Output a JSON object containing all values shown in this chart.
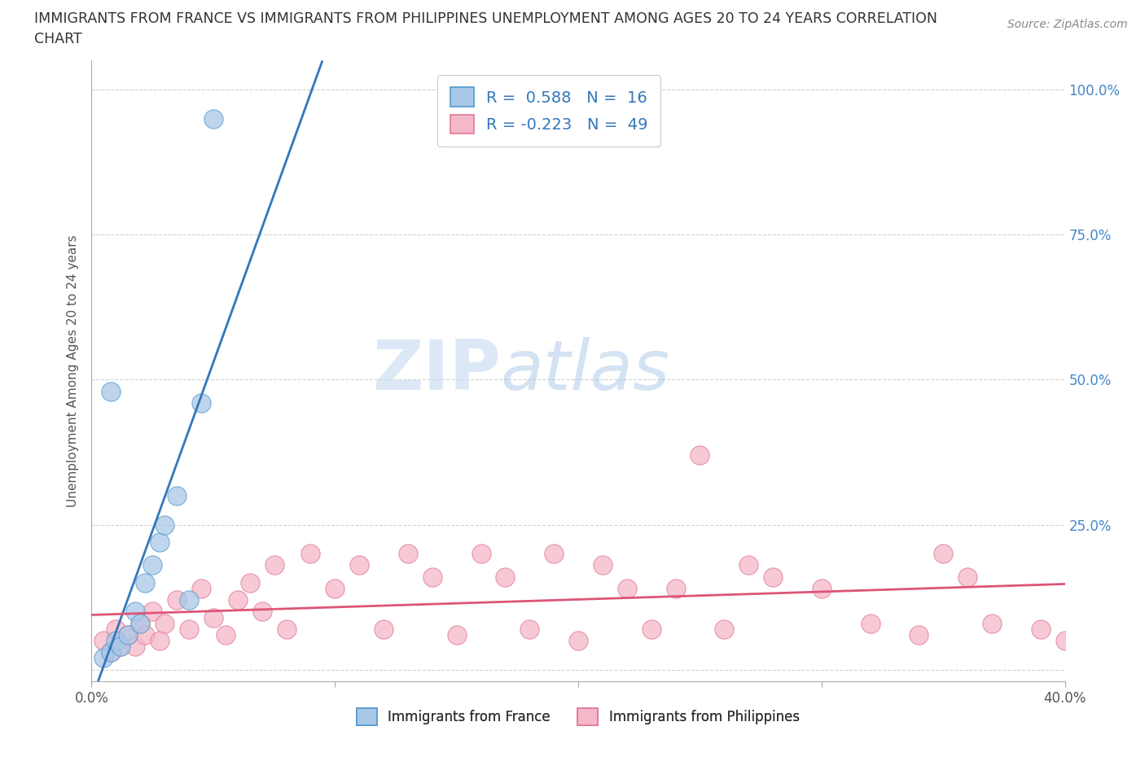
{
  "title_line1": "IMMIGRANTS FROM FRANCE VS IMMIGRANTS FROM PHILIPPINES UNEMPLOYMENT AMONG AGES 20 TO 24 YEARS CORRELATION",
  "title_line2": "CHART",
  "source_text": "Source: ZipAtlas.com",
  "ylabel": "Unemployment Among Ages 20 to 24 years",
  "xlim": [
    0.0,
    0.4
  ],
  "ylim": [
    -0.02,
    1.05
  ],
  "yticks": [
    0.0,
    0.25,
    0.5,
    0.75,
    1.0
  ],
  "xticks": [
    0.0,
    0.1,
    0.2,
    0.3,
    0.4
  ],
  "france_color": "#a8c8e8",
  "france_edge": "#5599cc",
  "philippines_color": "#f5b8c8",
  "philippines_edge": "#e07898",
  "france_r": 0.588,
  "france_n": 16,
  "philippines_r": -0.223,
  "philippines_n": 49,
  "legend_label_france": "Immigrants from France",
  "legend_label_philippines": "Immigrants from Philippines",
  "watermark_zip": "ZIP",
  "watermark_atlas": "atlas",
  "france_scatter_x": [
    0.005,
    0.008,
    0.01,
    0.012,
    0.015,
    0.018,
    0.02,
    0.022,
    0.025,
    0.028,
    0.03,
    0.035,
    0.04,
    0.045,
    0.05,
    0.008
  ],
  "france_scatter_y": [
    0.02,
    0.03,
    0.05,
    0.04,
    0.06,
    0.1,
    0.08,
    0.15,
    0.18,
    0.22,
    0.25,
    0.3,
    0.12,
    0.46,
    0.95,
    0.48
  ],
  "philippines_scatter_x": [
    0.005,
    0.008,
    0.01,
    0.012,
    0.015,
    0.018,
    0.02,
    0.022,
    0.025,
    0.028,
    0.03,
    0.035,
    0.04,
    0.045,
    0.05,
    0.055,
    0.06,
    0.065,
    0.07,
    0.075,
    0.08,
    0.09,
    0.1,
    0.11,
    0.12,
    0.13,
    0.14,
    0.15,
    0.16,
    0.17,
    0.18,
    0.19,
    0.2,
    0.21,
    0.22,
    0.23,
    0.24,
    0.25,
    0.26,
    0.27,
    0.28,
    0.3,
    0.32,
    0.34,
    0.35,
    0.36,
    0.37,
    0.39,
    0.4
  ],
  "philippines_scatter_y": [
    0.05,
    0.03,
    0.07,
    0.04,
    0.06,
    0.04,
    0.08,
    0.06,
    0.1,
    0.05,
    0.08,
    0.12,
    0.07,
    0.14,
    0.09,
    0.06,
    0.12,
    0.15,
    0.1,
    0.18,
    0.07,
    0.2,
    0.14,
    0.18,
    0.07,
    0.2,
    0.16,
    0.06,
    0.2,
    0.16,
    0.07,
    0.2,
    0.05,
    0.18,
    0.14,
    0.07,
    0.14,
    0.37,
    0.07,
    0.18,
    0.16,
    0.14,
    0.08,
    0.06,
    0.2,
    0.16,
    0.08,
    0.07,
    0.05
  ],
  "background_color": "#ffffff",
  "grid_color": "#cccccc",
  "trend_france_color": "#3377bb",
  "trend_philippines_color": "#dd5577",
  "dash_color": "#99bbdd"
}
